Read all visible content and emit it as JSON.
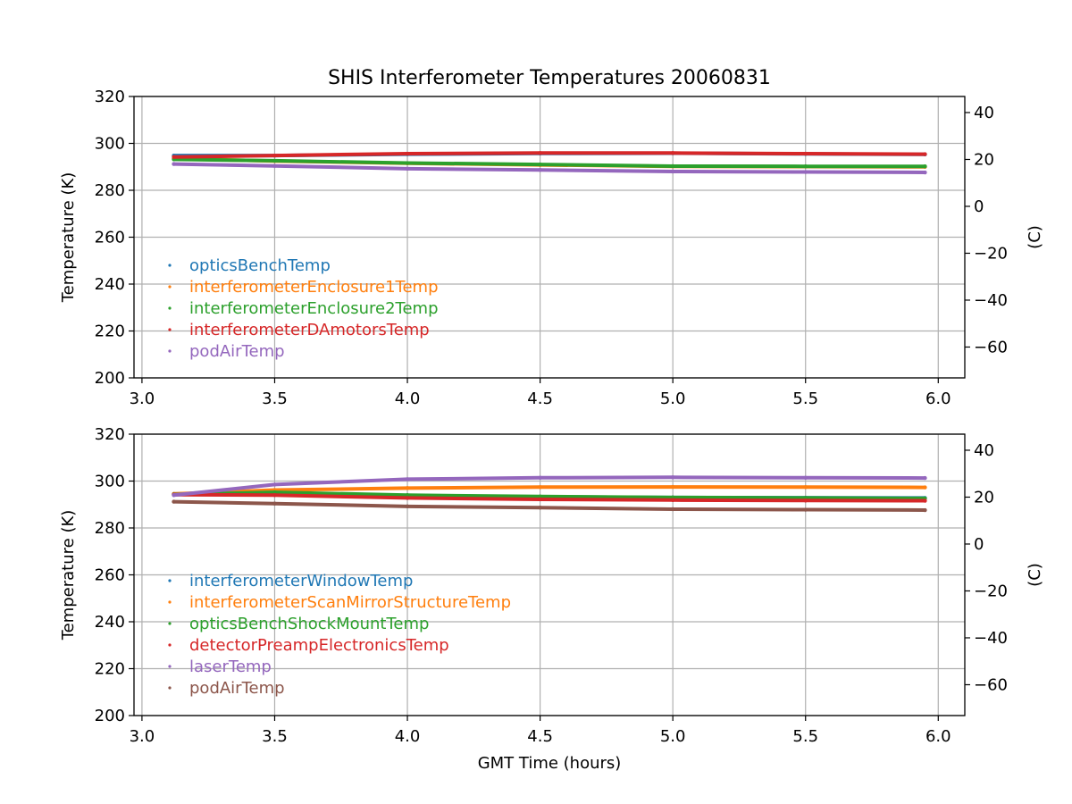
{
  "chart_data": [
    {
      "type": "line",
      "title": "SHIS Interferometer Temperatures 20060831",
      "xlabel": "",
      "ylabel": "Temperature (K)",
      "ylabel_right": "(C)",
      "xlim": [
        2.97,
        6.1
      ],
      "ylim": [
        200,
        320
      ],
      "xticks": [
        "3.0",
        "3.5",
        "4.0",
        "4.5",
        "5.0",
        "5.5",
        "6.0"
      ],
      "yticks": [
        "200",
        "220",
        "240",
        "260",
        "280",
        "300",
        "320"
      ],
      "yticks_right": [
        "40",
        "20",
        "0",
        "−20",
        "−40",
        "−60"
      ],
      "grid": true,
      "legend": "center-left",
      "x": [
        3.12,
        3.5,
        4.0,
        4.5,
        5.0,
        5.5,
        5.95
      ],
      "series": [
        {
          "name": "opticsBenchTemp",
          "color": "#1f77b4",
          "values": [
            294.8,
            294.8,
            295.4,
            295.7,
            295.8,
            295.5,
            295.3
          ]
        },
        {
          "name": "interferometerEnclosure1Temp",
          "color": "#ff7f0e",
          "values": [
            293.5,
            292.5,
            291.5,
            290.8,
            290.2,
            290.1,
            290.0
          ]
        },
        {
          "name": "interferometerEnclosure2Temp",
          "color": "#2ca02c",
          "values": [
            293.2,
            292.6,
            291.6,
            291.0,
            290.3,
            290.2,
            290.2
          ]
        },
        {
          "name": "interferometerDAmotorsTemp",
          "color": "#d62728",
          "values": [
            294.2,
            294.8,
            295.6,
            295.9,
            295.9,
            295.6,
            295.4
          ]
        },
        {
          "name": "podAirTemp",
          "color": "#9467bd",
          "values": [
            291.2,
            290.4,
            289.2,
            288.7,
            288.0,
            287.8,
            287.6
          ]
        }
      ]
    },
    {
      "type": "line",
      "title": "",
      "xlabel": "GMT Time (hours)",
      "ylabel": "Temperature (K)",
      "ylabel_right": "(C)",
      "xlim": [
        2.97,
        6.1
      ],
      "ylim": [
        200,
        320
      ],
      "xticks": [
        "3.0",
        "3.5",
        "4.0",
        "4.5",
        "5.0",
        "5.5",
        "6.0"
      ],
      "yticks": [
        "200",
        "220",
        "240",
        "260",
        "280",
        "300",
        "320"
      ],
      "yticks_right": [
        "40",
        "20",
        "0",
        "−20",
        "−40",
        "−60"
      ],
      "grid": true,
      "legend": "center-left",
      "x": [
        3.12,
        3.5,
        4.0,
        4.5,
        5.0,
        5.5,
        5.95
      ],
      "series": [
        {
          "name": "interferometerWindowTemp",
          "color": "#1f77b4",
          "values": [
            294.5,
            294.8,
            293.8,
            293.3,
            293.0,
            292.9,
            292.8
          ]
        },
        {
          "name": "interferometerScanMirrorStructureTemp",
          "color": "#ff7f0e",
          "values": [
            294.5,
            296.2,
            297.0,
            297.4,
            297.5,
            297.4,
            297.3
          ]
        },
        {
          "name": "opticsBenchShockMountTemp",
          "color": "#2ca02c",
          "values": [
            294.3,
            295.2,
            294.0,
            293.4,
            293.0,
            292.8,
            292.6
          ]
        },
        {
          "name": "detectorPreampElectronicsTemp",
          "color": "#d62728",
          "values": [
            294.2,
            294.0,
            292.8,
            292.2,
            291.9,
            291.7,
            291.6
          ]
        },
        {
          "name": "laserTemp",
          "color": "#9467bd",
          "values": [
            294.0,
            298.5,
            300.8,
            301.4,
            301.6,
            301.4,
            301.3
          ]
        },
        {
          "name": "podAirTemp",
          "color": "#8c564b",
          "values": [
            291.2,
            290.4,
            289.2,
            288.7,
            288.0,
            287.8,
            287.6
          ]
        }
      ]
    }
  ]
}
